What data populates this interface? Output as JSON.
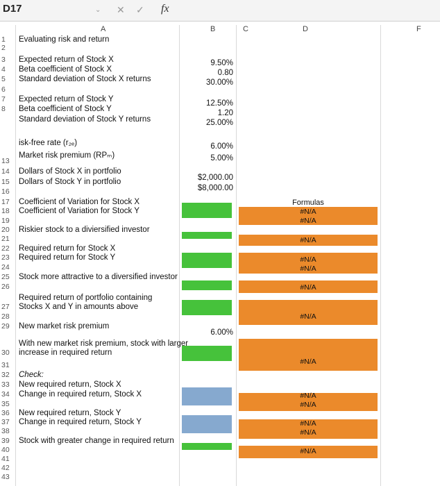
{
  "formula_bar": {
    "cell_ref": "D17",
    "cancel_icon": "✕",
    "confirm_icon": "✓",
    "fx_label": "fx"
  },
  "columns": [
    "A",
    "B",
    "C",
    "D",
    "F"
  ],
  "rows": {
    "r1": {
      "num": "1",
      "label": "Evaluating risk and return"
    },
    "r2": {
      "num": "2"
    },
    "r3": {
      "num": "3",
      "label": "Expected return of Stock X",
      "value": "9.50%"
    },
    "r4": {
      "num": "4",
      "label": "Beta coefficient of Stock X",
      "value": "0.80"
    },
    "r5": {
      "num": "5",
      "label": "Standard deviation of Stock X returns",
      "value": "30.00%"
    },
    "r6": {
      "num": "6"
    },
    "r7": {
      "num": "7",
      "label": "Expected return of Stock Y",
      "value": "12.50%"
    },
    "r8": {
      "num": "8",
      "label": "Beta coefficient of Stock Y",
      "value": "1.20"
    },
    "r9": {
      "label": "Standard deviation of Stock Y returns",
      "value": "25.00%"
    },
    "r11": {
      "label": "isk-free rate (r₂ₑ)",
      "value": "6.00%"
    },
    "r12": {
      "label": "Market risk premium (RPₘ)",
      "value": "5.00%"
    },
    "r13": {
      "num": "13"
    },
    "r14": {
      "num": "14",
      "label": "Dollars of Stock X in portfolio",
      "value": "$2,000.00"
    },
    "r15": {
      "num": "15",
      "label": "Dollars of Stock Y in portfolio",
      "value": "$8,000.00"
    },
    "r16": {
      "num": "16"
    },
    "r17": {
      "num": "17",
      "label": "Coefficient of Variation for Stock X"
    },
    "r18": {
      "num": "18",
      "label": "Coefficient of Variation for Stock Y"
    },
    "r19": {
      "num": "19"
    },
    "r20": {
      "num": "20",
      "label": "Riskier stock to a diviersified investor"
    },
    "r21": {
      "num": "21"
    },
    "r22": {
      "num": "22",
      "label": "Required return for Stock X"
    },
    "r23": {
      "num": "23",
      "label": "Required return for Stock Y"
    },
    "r24": {
      "num": "24"
    },
    "r25": {
      "num": "25",
      "label": "Stock more attractive to a diversified investor"
    },
    "r26": {
      "num": "26"
    },
    "r27a": {
      "label": "Required return of portfolio containing"
    },
    "r27": {
      "num": "27",
      "label": "Stocks X and Y in amounts above"
    },
    "r28": {
      "num": "28"
    },
    "r29": {
      "num": "29",
      "label": "New market risk premium",
      "value": "6.00%"
    },
    "r30a": {
      "label": "With new market risk premium, stock with larger"
    },
    "r30": {
      "num": "30",
      "label": "increase in required return"
    },
    "r31": {
      "num": "31"
    },
    "r32": {
      "num": "32",
      "label": "Check:"
    },
    "r33": {
      "num": "33",
      "label": "New required return, Stock X"
    },
    "r34": {
      "num": "34",
      "label": "Change in required return, Stock X"
    },
    "r35": {
      "num": "35"
    },
    "r36": {
      "num": "36",
      "label": "New required return, Stock Y"
    },
    "r37": {
      "num": "37",
      "label": "Change in required return, Stock Y"
    },
    "r38": {
      "num": "38"
    },
    "r39": {
      "num": "39",
      "label": "Stock with greater change in required return"
    },
    "r40": {
      "num": "40"
    },
    "r41": {
      "num": "41"
    },
    "r42": {
      "num": "42"
    },
    "r43": {
      "num": "43"
    }
  },
  "formulas_header": "Formulas",
  "na_text": "#N/A",
  "colors": {
    "green": "#46c23b",
    "blue": "#86a9cf",
    "orange": "#eb8a2b"
  }
}
